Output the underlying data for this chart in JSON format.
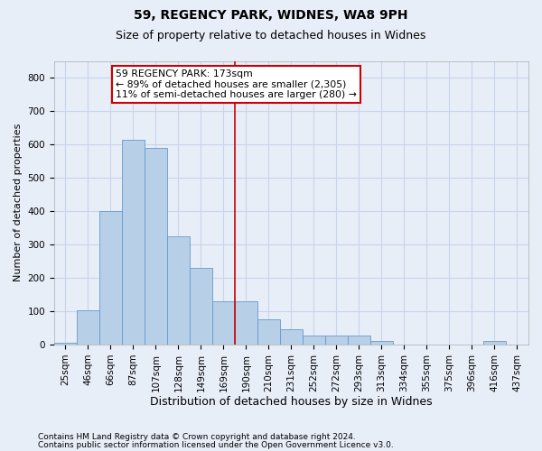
{
  "title1": "59, REGENCY PARK, WIDNES, WA8 9PH",
  "title2": "Size of property relative to detached houses in Widnes",
  "xlabel": "Distribution of detached houses by size in Widnes",
  "ylabel": "Number of detached properties",
  "footer1": "Contains HM Land Registry data © Crown copyright and database right 2024.",
  "footer2": "Contains public sector information licensed under the Open Government Licence v3.0.",
  "bar_labels": [
    "25sqm",
    "46sqm",
    "66sqm",
    "87sqm",
    "107sqm",
    "128sqm",
    "149sqm",
    "169sqm",
    "190sqm",
    "210sqm",
    "231sqm",
    "252sqm",
    "272sqm",
    "293sqm",
    "313sqm",
    "334sqm",
    "355sqm",
    "375sqm",
    "396sqm",
    "416sqm",
    "437sqm"
  ],
  "bar_values": [
    5,
    103,
    400,
    613,
    590,
    325,
    230,
    130,
    130,
    75,
    47,
    27,
    27,
    27,
    10,
    0,
    0,
    0,
    0,
    10,
    0
  ],
  "bar_color": "#b8cfe8",
  "bar_edge_color": "#6699cc",
  "vline_x_index": 7.5,
  "vline_color": "#cc0000",
  "annotation_line1": "59 REGENCY PARK: 173sqm",
  "annotation_line2": "← 89% of detached houses are smaller (2,305)",
  "annotation_line3": "11% of semi-detached houses are larger (280) →",
  "annotation_box_color": "#cc0000",
  "ylim": [
    0,
    850
  ],
  "yticks": [
    0,
    100,
    200,
    300,
    400,
    500,
    600,
    700,
    800
  ],
  "grid_color": "#c8d4e8",
  "background_color": "#e8eef8",
  "plot_bg_color": "#e8eef8",
  "title1_fontsize": 10,
  "title2_fontsize": 9,
  "ylabel_fontsize": 8,
  "xlabel_fontsize": 9,
  "tick_fontsize": 7.5,
  "footer_fontsize": 6.5
}
